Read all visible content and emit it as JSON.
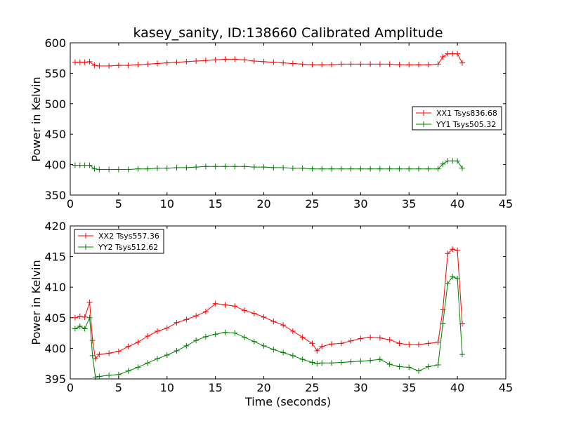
{
  "title": "kasey_sanity, ID:138660 Calibrated Amplitude",
  "chart_data": [
    {
      "type": "line",
      "ylabel": "Power in Kelvin",
      "xlabel": "",
      "xlim": [
        0,
        45
      ],
      "ylim": [
        350,
        600
      ],
      "xticks": [
        0,
        5,
        10,
        15,
        20,
        25,
        30,
        35,
        40,
        45
      ],
      "yticks": [
        350,
        400,
        450,
        500,
        550,
        600
      ],
      "legend_position": "center-right",
      "series": [
        {
          "name": "XX1 Tsys836.68",
          "color": "#ff0000",
          "marker": "plus",
          "x": [
            0.5,
            1,
            1.5,
            2,
            2.5,
            3,
            4,
            5,
            6,
            7,
            8,
            9,
            10,
            11,
            12,
            13,
            14,
            15,
            16,
            17,
            18,
            19,
            20,
            21,
            22,
            23,
            24,
            25,
            26,
            27,
            28,
            29,
            30,
            31,
            32,
            33,
            34,
            35,
            36,
            37,
            38,
            38.5,
            39,
            39.5,
            40,
            40.5
          ],
          "values": [
            568,
            568,
            568,
            569,
            563,
            562,
            562,
            563,
            563,
            564,
            565,
            566,
            567,
            568,
            569,
            570,
            571,
            572,
            573,
            573,
            572,
            570,
            569,
            568,
            567,
            566,
            565,
            564,
            564,
            564,
            565,
            565,
            565,
            565,
            565,
            565,
            564,
            564,
            564,
            564,
            565,
            577,
            582,
            582,
            582,
            567
          ]
        },
        {
          "name": "YY1 Tsys505.32",
          "color": "#008000",
          "marker": "plus",
          "x": [
            0.5,
            1,
            1.5,
            2,
            2.5,
            3,
            4,
            5,
            6,
            7,
            8,
            9,
            10,
            11,
            12,
            13,
            14,
            15,
            16,
            17,
            18,
            19,
            20,
            21,
            22,
            23,
            24,
            25,
            26,
            27,
            28,
            29,
            30,
            31,
            32,
            33,
            34,
            35,
            36,
            37,
            38,
            38.5,
            39,
            39.5,
            40,
            40.5
          ],
          "values": [
            399,
            399,
            399,
            399,
            393,
            392,
            392,
            392,
            392,
            393,
            393,
            394,
            394,
            395,
            395,
            396,
            397,
            397,
            397,
            397,
            397,
            396,
            396,
            395,
            395,
            394,
            394,
            393,
            393,
            393,
            393,
            393,
            393,
            393,
            393,
            393,
            393,
            393,
            393,
            393,
            393,
            401,
            406,
            406,
            406,
            394
          ]
        }
      ]
    },
    {
      "type": "line",
      "ylabel": "Power in Kelvin",
      "xlabel": "Time (seconds)",
      "xlim": [
        0,
        45
      ],
      "ylim": [
        395,
        420
      ],
      "xticks": [
        0,
        5,
        10,
        15,
        20,
        25,
        30,
        35,
        40,
        45
      ],
      "yticks": [
        395,
        400,
        405,
        410,
        415,
        420
      ],
      "legend_position": "upper-left",
      "series": [
        {
          "name": "XX2 Tsys557.36",
          "color": "#ff0000",
          "marker": "plus",
          "x": [
            0.5,
            1,
            1.5,
            2,
            2.3,
            2.6,
            3,
            4,
            5,
            6,
            7,
            8,
            9,
            10,
            11,
            12,
            13,
            14,
            15,
            16,
            17,
            18,
            19,
            20,
            21,
            22,
            23,
            24,
            25,
            25.5,
            26,
            27,
            28,
            29,
            30,
            31,
            32,
            33,
            34,
            35,
            36,
            37,
            38,
            38.5,
            39,
            39.5,
            40,
            40.5
          ],
          "values": [
            405,
            405.2,
            405.1,
            407.5,
            401.3,
            398.3,
            399,
            399.2,
            399.5,
            400.3,
            401,
            402,
            402.8,
            403.3,
            404.2,
            404.7,
            405.3,
            406,
            407.3,
            407.1,
            406.9,
            406.2,
            405.7,
            405.1,
            404.4,
            403.8,
            402.8,
            401.8,
            400.8,
            399.6,
            400.3,
            400.7,
            400.8,
            401.2,
            401.6,
            401.8,
            401.7,
            401.4,
            400.8,
            400.6,
            400.6,
            400.8,
            401,
            406.3,
            415.5,
            416.2,
            416,
            404
          ]
        },
        {
          "name": "YY2 Tsys512.62",
          "color": "#008000",
          "marker": "plus",
          "x": [
            0.5,
            1,
            1.5,
            2,
            2.3,
            2.6,
            3,
            4,
            5,
            6,
            7,
            8,
            9,
            10,
            11,
            12,
            13,
            14,
            15,
            16,
            17,
            18,
            19,
            20,
            21,
            22,
            23,
            24,
            25,
            25.5,
            26,
            27,
            28,
            29,
            30,
            31,
            32,
            33,
            34,
            35,
            36,
            37,
            38,
            38.5,
            39,
            39.5,
            40,
            40.5
          ],
          "values": [
            403.2,
            403.6,
            403.2,
            405,
            398.8,
            395.3,
            395.4,
            395.6,
            395.7,
            396.3,
            396.9,
            397.6,
            398.3,
            398.9,
            399.6,
            400.4,
            401.3,
            401.9,
            402.3,
            402.6,
            402.5,
            401.8,
            401.1,
            400.4,
            399.8,
            399.3,
            398.8,
            398.2,
            397.7,
            397.5,
            397.6,
            397.6,
            397.7,
            397.8,
            397.9,
            398,
            398.2,
            397.4,
            397,
            396.9,
            396.3,
            397,
            397.3,
            404,
            410.6,
            411.7,
            411.4,
            399
          ]
        }
      ]
    }
  ]
}
